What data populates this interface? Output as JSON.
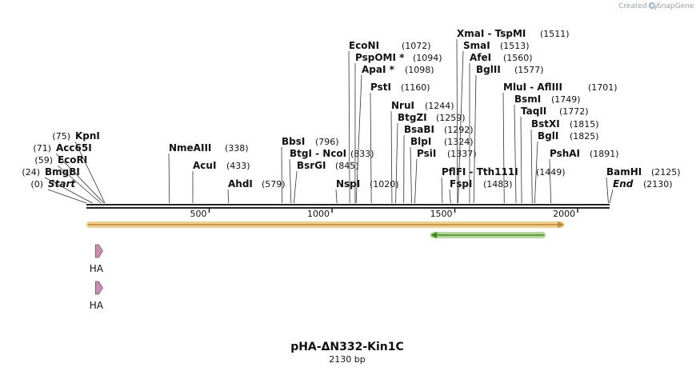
{
  "brand": {
    "created_by": "Created by",
    "app": "SnapGene"
  },
  "map": {
    "name": "pHA-ΔN332-Kin1C",
    "length_label": "2130 bp",
    "length_bp": 2130
  },
  "ruler_ticks": [
    {
      "value": 500,
      "label": "500"
    },
    {
      "value": 1000,
      "label": "1000"
    },
    {
      "value": 1500,
      "label": "1500"
    },
    {
      "value": 2000,
      "label": "2000"
    }
  ],
  "sites": [
    {
      "name": "Start",
      "pos": "(0)",
      "bp": 0,
      "italic": true
    },
    {
      "name": "BmgBI",
      "pos": "(24)",
      "bp": 24
    },
    {
      "name": "EcoRI",
      "pos": "(59)",
      "bp": 59
    },
    {
      "name": "Acc65I",
      "pos": "(71)",
      "bp": 71
    },
    {
      "name": "KpnI",
      "pos": "(75)",
      "bp": 75
    },
    {
      "name": "NmeAIII",
      "pos": "(338)",
      "bp": 338
    },
    {
      "name": "AcuI",
      "pos": "(433)",
      "bp": 433
    },
    {
      "name": "AhdI",
      "pos": "(579)",
      "bp": 579
    },
    {
      "name": "BbsI",
      "pos": "(796)",
      "bp": 796
    },
    {
      "name": "BtgI - NcoI",
      "pos": "(833)",
      "bp": 833
    },
    {
      "name": "BsrGI",
      "pos": "(845)",
      "bp": 845
    },
    {
      "name": "NspI",
      "pos": "(1020)",
      "bp": 1020
    },
    {
      "name": "EcoNI",
      "pos": "(1072)",
      "bp": 1072
    },
    {
      "name": "PspOMI *",
      "pos": "(1094)",
      "bp": 1094
    },
    {
      "name": "ApaI *",
      "pos": "(1098)",
      "bp": 1098
    },
    {
      "name": "PstI",
      "pos": "(1160)",
      "bp": 1160
    },
    {
      "name": "NruI",
      "pos": "(1244)",
      "bp": 1244
    },
    {
      "name": "BtgZI",
      "pos": "(1259)",
      "bp": 1259
    },
    {
      "name": "BsaBI",
      "pos": "(1292)",
      "bp": 1292
    },
    {
      "name": "BlpI",
      "pos": "(1324)",
      "bp": 1324
    },
    {
      "name": "PsiI",
      "pos": "(1337)",
      "bp": 1337
    },
    {
      "name": "PflFI - Tth111I",
      "pos": "(1449)",
      "bp": 1449
    },
    {
      "name": "FspI",
      "pos": "(1483)",
      "bp": 1483
    },
    {
      "name": "XmaI - TspMI",
      "pos": "(1511)",
      "bp": 1511
    },
    {
      "name": "SmaI",
      "pos": "(1513)",
      "bp": 1513
    },
    {
      "name": "AfeI",
      "pos": "(1560)",
      "bp": 1560
    },
    {
      "name": "BglII",
      "pos": "(1577)",
      "bp": 1577
    },
    {
      "name": "MluI - AflIII",
      "pos": "(1701)",
      "bp": 1701
    },
    {
      "name": "BsmI",
      "pos": "(1749)",
      "bp": 1749
    },
    {
      "name": "TaqII",
      "pos": "(1772)",
      "bp": 1772
    },
    {
      "name": "BstXI",
      "pos": "(1815)",
      "bp": 1815
    },
    {
      "name": "BglI",
      "pos": "(1825)",
      "bp": 1825
    },
    {
      "name": "PshAI",
      "pos": "(1891)",
      "bp": 1891
    },
    {
      "name": "BamHI",
      "pos": "(2125)",
      "bp": 2125
    },
    {
      "name": "End",
      "pos": "(2130)",
      "bp": 2130,
      "italic": true
    }
  ],
  "features": [
    {
      "name": "orf-forward",
      "start_bp": 0,
      "end_bp": 1945,
      "direction": "forward",
      "color": "#f0c27a",
      "edge": "#c0892e"
    },
    {
      "name": "orf-reverse",
      "start_bp": 1401,
      "end_bp": 1870,
      "direction": "reverse",
      "color": "#a8d08a",
      "edge": "#3d8a1d"
    },
    {
      "name": "HA",
      "label": "HA",
      "bp": 24,
      "color": "#c98fb2"
    },
    {
      "name": "HA",
      "label": "HA",
      "bp": 24,
      "color": "#c98fb2"
    }
  ]
}
